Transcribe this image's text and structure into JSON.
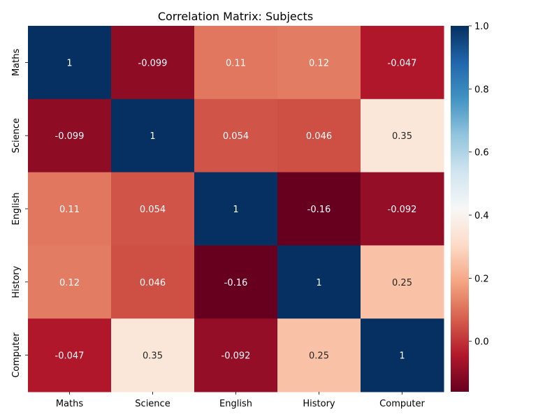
{
  "chart_data": {
    "type": "heatmap",
    "title": "Correlation Matrix: Subjects",
    "x_labels": [
      "Maths",
      "Science",
      "English",
      "History",
      "Computer"
    ],
    "y_labels": [
      "Maths",
      "Science",
      "English",
      "History",
      "Computer"
    ],
    "values": [
      [
        1,
        -0.099,
        0.11,
        0.12,
        -0.047
      ],
      [
        -0.099,
        1,
        0.054,
        0.046,
        0.35
      ],
      [
        0.11,
        0.054,
        1,
        -0.16,
        -0.092
      ],
      [
        0.12,
        0.046,
        -0.16,
        1,
        0.25
      ],
      [
        -0.047,
        0.35,
        -0.092,
        0.25,
        1
      ]
    ],
    "cell_labels": [
      [
        "1",
        "-0.099",
        "0.11",
        "0.12",
        "-0.047"
      ],
      [
        "-0.099",
        "1",
        "0.054",
        "0.046",
        "0.35"
      ],
      [
        "0.11",
        "0.054",
        "1",
        "-0.16",
        "-0.092"
      ],
      [
        "0.12",
        "0.046",
        "-0.16",
        "1",
        "0.25"
      ],
      [
        "-0.047",
        "0.35",
        "-0.092",
        "0.25",
        "1"
      ]
    ],
    "colormap": "RdBu",
    "vmin": -0.16,
    "vmax": 1.0,
    "colorbar": {
      "ticks": [
        0.0,
        0.2,
        0.4,
        0.6,
        0.8,
        1.0
      ],
      "tick_labels": [
        "0.0",
        "0.2",
        "0.4",
        "0.6",
        "0.8",
        "1.0"
      ]
    }
  }
}
